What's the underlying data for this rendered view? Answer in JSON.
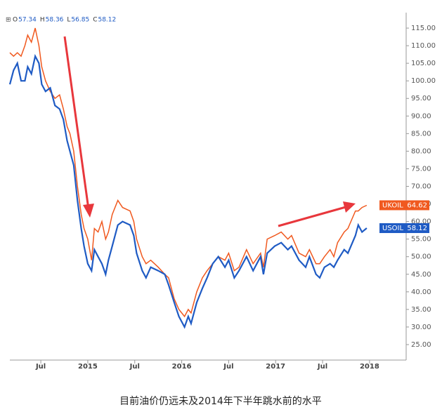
{
  "chart_data": {
    "type": "line",
    "ohlc": [
      {
        "label": "O",
        "value": 57.34
      },
      {
        "label": "H",
        "value": 58.36
      },
      {
        "label": "L",
        "value": 56.85
      },
      {
        "label": "C",
        "value": 58.12
      }
    ],
    "caption": "目前油价仍远未及2014年下半年跳水前的水平",
    "x": [
      2014.17,
      2014.21,
      2014.25,
      2014.29,
      2014.33,
      2014.36,
      2014.4,
      2014.44,
      2014.48,
      2014.51,
      2014.55,
      2014.6,
      2014.65,
      2014.7,
      2014.74,
      2014.78,
      2014.81,
      2014.85,
      2014.89,
      2014.93,
      2014.96,
      2015.0,
      2015.04,
      2015.07,
      2015.11,
      2015.15,
      2015.19,
      2015.22,
      2015.26,
      2015.32,
      2015.37,
      2015.45,
      2015.49,
      2015.52,
      2015.58,
      2015.62,
      2015.67,
      2015.75,
      2015.82,
      2015.86,
      2015.92,
      2015.97,
      2016.03,
      2016.07,
      2016.1,
      2016.16,
      2016.22,
      2016.27,
      2016.33,
      2016.39,
      2016.46,
      2016.5,
      2016.56,
      2016.61,
      2016.69,
      2016.76,
      2016.84,
      2016.87,
      2016.91,
      2016.99,
      2017.06,
      2017.13,
      2017.17,
      2017.25,
      2017.32,
      2017.36,
      2017.43,
      2017.47,
      2017.52,
      2017.58,
      2017.62,
      2017.66,
      2017.73,
      2017.77,
      2017.85,
      2017.88,
      2017.92,
      2017.97
    ],
    "series": [
      {
        "name": "UKOIL",
        "color": "#f0591f",
        "values": [
          108,
          107,
          108,
          107,
          110,
          113,
          111,
          115,
          110,
          104,
          100,
          97,
          95,
          96,
          92,
          87,
          85,
          80,
          70,
          62,
          58,
          55,
          49,
          58,
          57,
          60,
          55,
          57,
          62,
          66,
          64,
          63,
          60,
          55,
          50,
          48,
          49,
          47,
          45,
          44,
          38,
          35,
          33,
          35,
          34,
          40,
          44,
          46,
          48,
          50,
          49,
          51,
          46,
          47,
          52,
          48,
          51,
          47,
          55,
          56,
          57,
          55,
          56,
          51,
          50,
          52,
          48,
          48,
          50,
          52,
          50,
          54,
          57,
          58,
          63,
          63,
          64,
          64.62
        ]
      },
      {
        "name": "USOIL",
        "color": "#1f5bc4",
        "values": [
          99,
          103,
          105,
          100,
          100,
          104,
          102,
          107,
          105,
          99,
          97,
          98,
          93,
          92,
          89,
          83,
          80,
          76,
          66,
          58,
          53,
          48,
          46,
          52,
          50,
          48,
          45,
          49,
          53,
          59,
          60,
          59,
          56,
          51,
          46,
          44,
          47,
          46,
          45,
          42,
          37,
          33,
          30,
          33,
          31,
          37,
          41,
          44,
          48,
          50,
          47,
          49,
          44,
          46,
          50,
          46,
          50,
          45,
          51,
          53,
          54,
          52,
          53,
          49,
          47,
          50,
          45,
          44,
          47,
          48,
          47,
          49,
          52,
          51,
          56,
          59,
          57,
          58.12
        ]
      }
    ],
    "xlim": [
      2014.17,
      2018.39
    ],
    "xticks": [
      {
        "value": 2014.5,
        "label": "Jul"
      },
      2015,
      {
        "value": 2015.5,
        "label": "Jul"
      },
      2016,
      {
        "value": 2016.5,
        "label": "Jul"
      },
      2017,
      {
        "value": 2017.5,
        "label": "Jul"
      },
      2018
    ],
    "ylim": [
      20.6,
      119.4
    ],
    "yticks": [
      {
        "value": 25,
        "label": "25.00"
      },
      {
        "value": 30,
        "label": "30.00"
      },
      {
        "value": 35,
        "label": "35.00"
      },
      {
        "value": 40,
        "label": "40.00"
      },
      {
        "value": 45,
        "label": "45.00"
      },
      {
        "value": 50,
        "label": "50.00"
      },
      {
        "value": 55,
        "label": "55.00"
      },
      {
        "value": 60,
        "label": "60.00"
      },
      {
        "value": 65,
        "label": "65.00"
      },
      {
        "value": 70,
        "label": "70.00"
      },
      {
        "value": 75,
        "label": "75.00"
      },
      {
        "value": 80,
        "label": "80.00"
      },
      {
        "value": 85,
        "label": "85.00"
      },
      {
        "value": 90,
        "label": "90.00"
      },
      {
        "value": 95,
        "label": "95.00"
      },
      {
        "value": 100,
        "label": "100.00"
      },
      {
        "value": 105,
        "label": "105.00"
      },
      {
        "value": 110,
        "label": "110.00"
      },
      {
        "value": 115,
        "label": "115.00"
      }
    ],
    "grid": false
  }
}
